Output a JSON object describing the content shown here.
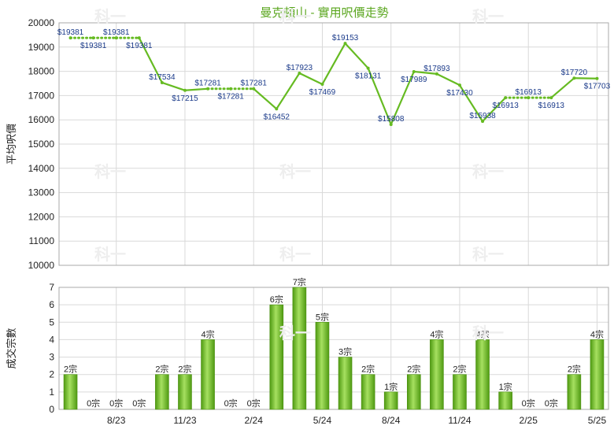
{
  "chart_data": [
    {
      "type": "line",
      "title": "曼克頓山 - 實用呎價走勢",
      "ylabel": "平均呎價",
      "ylim": [
        10000,
        20000
      ],
      "yticks": [
        "10000",
        "11000",
        "12000",
        "13000",
        "14000",
        "15000",
        "16000",
        "17000",
        "18000",
        "19000",
        "20000"
      ],
      "months": 24,
      "series": [
        {
          "values": [
            19381,
            19381,
            19381,
            19381,
            17534,
            17215,
            17281,
            17281,
            17281,
            16452,
            17923,
            17469,
            19153,
            18131,
            15808,
            17989,
            17893,
            17430,
            15938,
            16913,
            16913,
            16913,
            17720,
            17703
          ],
          "labels": [
            "$19381",
            "$19381",
            "$19381",
            "$19381",
            "$17534",
            "$17215",
            "$17281",
            "$17281",
            "$17281",
            "$16452",
            "$17923",
            "$17469",
            "$19153",
            "$18131",
            "$15808",
            "$17989",
            "$17893",
            "$17430",
            "$15938",
            "$16913",
            "$16913",
            "$16913",
            "$17720",
            "$17703"
          ],
          "interpolated": [
            false,
            true,
            true,
            false,
            false,
            false,
            false,
            true,
            false,
            false,
            false,
            false,
            false,
            false,
            false,
            false,
            false,
            false,
            false,
            false,
            true,
            false,
            false,
            false
          ],
          "line_color": "#66bb22"
        }
      ]
    },
    {
      "type": "bar",
      "ylabel": "成交宗數",
      "ylim": [
        0,
        7
      ],
      "yticks": [
        "0",
        "1",
        "2",
        "3",
        "4",
        "5",
        "6",
        "7"
      ],
      "values": [
        2,
        0,
        0,
        0,
        2,
        2,
        4,
        0,
        0,
        6,
        7,
        5,
        3,
        2,
        1,
        2,
        4,
        2,
        4,
        1,
        0,
        0,
        2,
        4
      ],
      "labels": [
        "2宗",
        "0宗",
        "0宗",
        "0宗",
        "2宗",
        "2宗",
        "4宗",
        "0宗",
        "0宗",
        "6宗",
        "7宗",
        "5宗",
        "3宗",
        "2宗",
        "1宗",
        "2宗",
        "4宗",
        "2宗",
        "4宗",
        "1宗",
        "0宗",
        "0宗",
        "2宗",
        "4宗"
      ],
      "bar_color": "#66bb22"
    }
  ],
  "x_axis": {
    "ticks": [
      {
        "label": "8/23",
        "index": 2
      },
      {
        "label": "11/23",
        "index": 5
      },
      {
        "label": "2/24",
        "index": 8
      },
      {
        "label": "5/24",
        "index": 11
      },
      {
        "label": "8/24",
        "index": 14
      },
      {
        "label": "11/24",
        "index": 17
      },
      {
        "label": "2/25",
        "index": 20
      },
      {
        "label": "5/25",
        "index": 23
      }
    ]
  },
  "watermark": "科一"
}
